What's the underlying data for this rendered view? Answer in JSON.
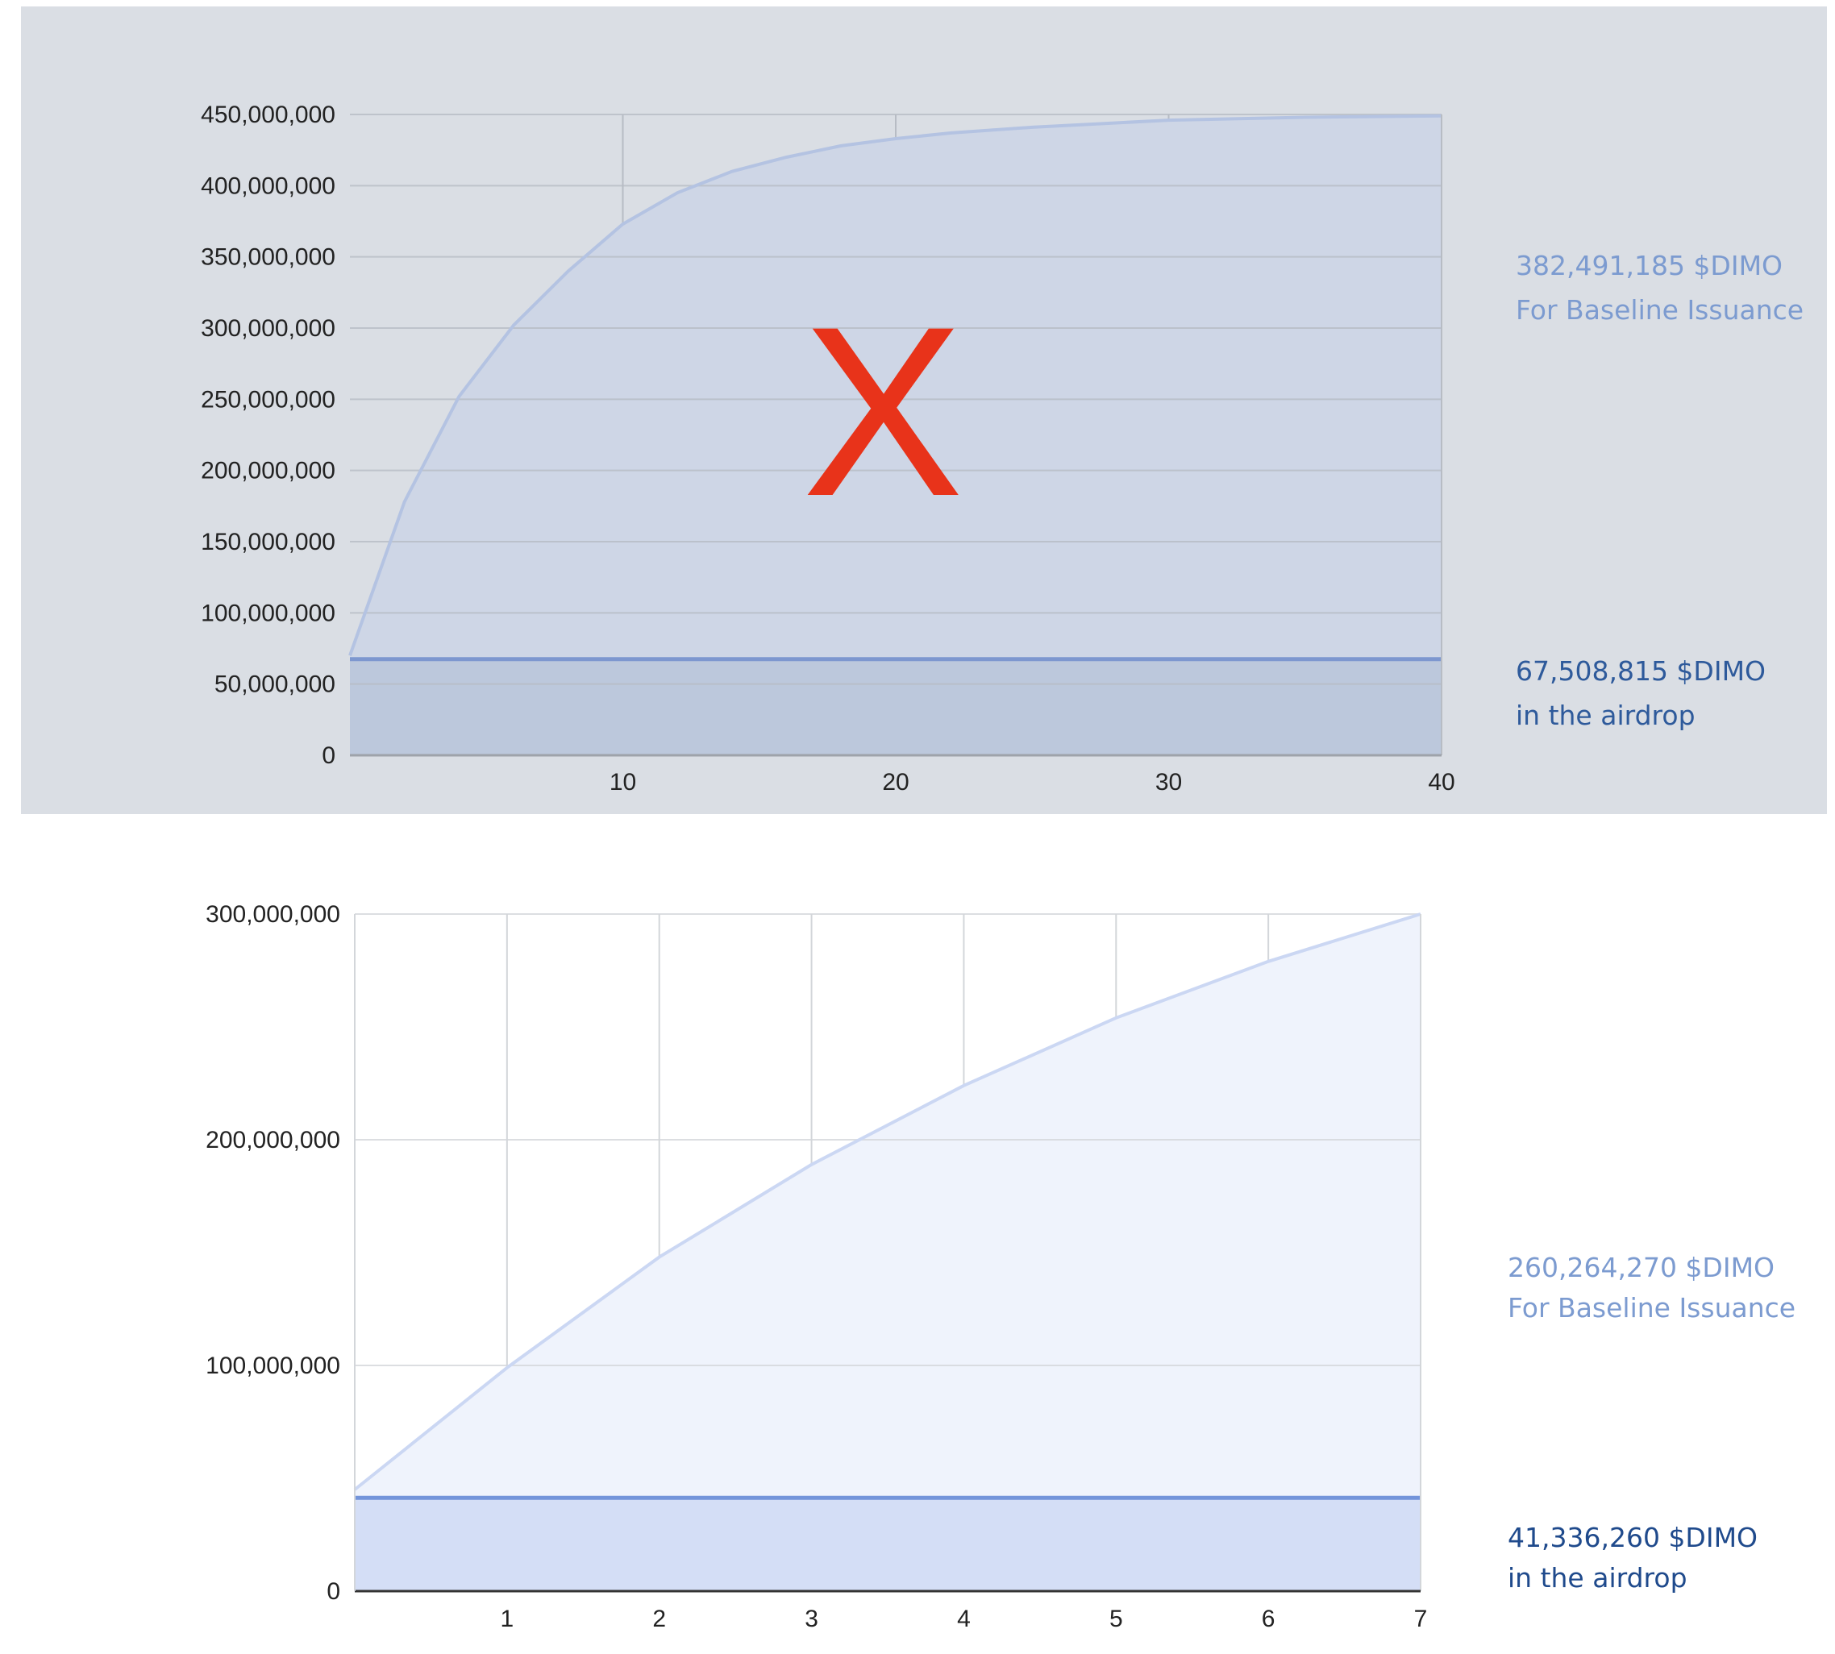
{
  "chart_data": [
    {
      "type": "area",
      "xlim": [
        0,
        40
      ],
      "ylim": [
        0,
        450000000
      ],
      "x_ticks": [
        "10",
        "20",
        "30",
        "40"
      ],
      "y_ticks": [
        "0",
        "50,000,000",
        "100,000,000",
        "150,000,000",
        "200,000,000",
        "250,000,000",
        "300,000,000",
        "350,000,000",
        "400,000,000",
        "450,000,000"
      ],
      "grid": true,
      "series": [
        {
          "x": [
            0,
            2,
            4,
            6,
            8,
            10,
            12,
            14,
            16,
            18,
            20,
            22,
            25,
            28,
            30,
            35,
            40
          ],
          "values": [
            70000000,
            178000000,
            252000000,
            302000000,
            340000000,
            373000000,
            395000000,
            410000000,
            420000000,
            428000000,
            433000000,
            437000000,
            441000000,
            444000000,
            446000000,
            448000000,
            449000000
          ],
          "color": "#b4c3e2",
          "fill": "#ced6e6"
        },
        {
          "x": [
            0,
            40
          ],
          "values": [
            67508815,
            67508815
          ],
          "color": "#7d97cf",
          "fill": "#bcc8dc"
        }
      ],
      "annotations": [
        {
          "lines": [
            "382,491,185 $DIMO",
            "For Baseline Issuance"
          ],
          "color": "#7c9bd0"
        },
        {
          "lines": [
            "67,508,815 $DIMO",
            "in the airdrop"
          ],
          "color": "#2e5a9b"
        }
      ],
      "mark": {
        "text": "X",
        "color": "#e8331a"
      },
      "background": "#dadee4"
    },
    {
      "type": "area",
      "xlim": [
        0,
        7
      ],
      "ylim": [
        0,
        300000000
      ],
      "x_ticks": [
        "1",
        "2",
        "3",
        "4",
        "5",
        "6",
        "7"
      ],
      "y_ticks": [
        "0",
        "100,000,000",
        "200,000,000",
        "300,000,000"
      ],
      "y_zero_label": "0",
      "grid": true,
      "series": [
        {
          "x": [
            0,
            1,
            2,
            3,
            4,
            5,
            6,
            7
          ],
          "values": [
            45000000,
            99000000,
            148000000,
            189000000,
            224000000,
            254000000,
            279000000,
            300000000
          ],
          "color": "#cbd7f3",
          "fill": "#eff3fc"
        },
        {
          "x": [
            0,
            7
          ],
          "values": [
            41336260,
            41336260
          ],
          "color": "#7394da",
          "fill": "#d4def6"
        }
      ],
      "annotations": [
        {
          "lines": [
            "260,264,270 $DIMO",
            "For Baseline Issuance"
          ],
          "color": "#7c9bd0"
        },
        {
          "lines": [
            "41,336,260 $DIMO",
            "in the airdrop"
          ],
          "color": "#1f4a8c"
        }
      ],
      "background": "#ffffff"
    }
  ]
}
